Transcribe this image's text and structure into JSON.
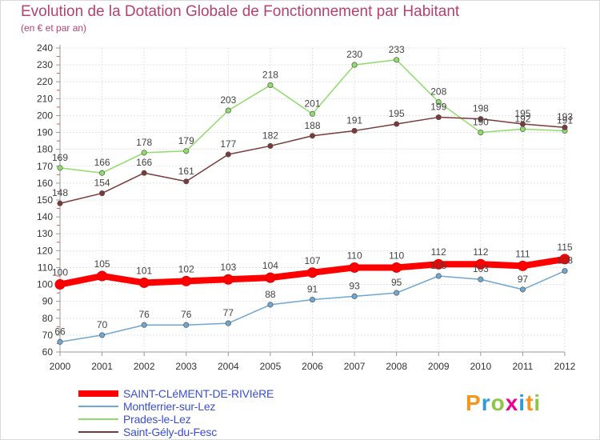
{
  "header": {
    "title": "Evolution de la Dotation Globale de Fonctionnement par Habitant",
    "subtitle": "(en € et par an)"
  },
  "logo": {
    "text": "Proxiti",
    "colors": [
      "#f7941d",
      "#2e9ad7",
      "#8dc63f",
      "#ec008c",
      "#2e9ad7",
      "#f7941d",
      "#8dc63f"
    ]
  },
  "chart_data": {
    "type": "line",
    "title": "Evolution de la Dotation Globale de Fonctionnement par Habitant",
    "subtitle": "(en € et par an)",
    "x": [
      2000,
      2001,
      2002,
      2003,
      2004,
      2005,
      2006,
      2007,
      2008,
      2009,
      2010,
      2011,
      2012
    ],
    "ylim": [
      60,
      240
    ],
    "yticks": [
      60,
      70,
      80,
      90,
      100,
      110,
      120,
      130,
      140,
      150,
      160,
      170,
      180,
      190,
      200,
      210,
      220,
      230,
      240
    ],
    "grid": true,
    "legend_position": "bottom-left",
    "series": [
      {
        "name": "SAINT-CLéMENT-DE-RIVIèRE",
        "color": "#ff0000",
        "values": [
          100,
          105,
          101,
          102,
          103,
          104,
          107,
          110,
          110,
          112,
          112,
          111,
          115
        ]
      },
      {
        "name": "Montferrier-sur-Lez",
        "color": "#6fa7d4",
        "values": [
          66,
          70,
          76,
          76,
          77,
          88,
          91,
          93,
          95,
          105,
          103,
          97,
          108
        ]
      },
      {
        "name": "Prades-le-Lez",
        "color": "#8fdc6a",
        "values": [
          169,
          166,
          178,
          179,
          203,
          218,
          201,
          230,
          233,
          208,
          190,
          192,
          191
        ]
      },
      {
        "name": "Saint-Gély-du-Fesc",
        "color": "#7a3a3a",
        "values": [
          148,
          154,
          166,
          161,
          177,
          182,
          188,
          191,
          195,
          199,
          198,
          195,
          193
        ]
      }
    ]
  }
}
